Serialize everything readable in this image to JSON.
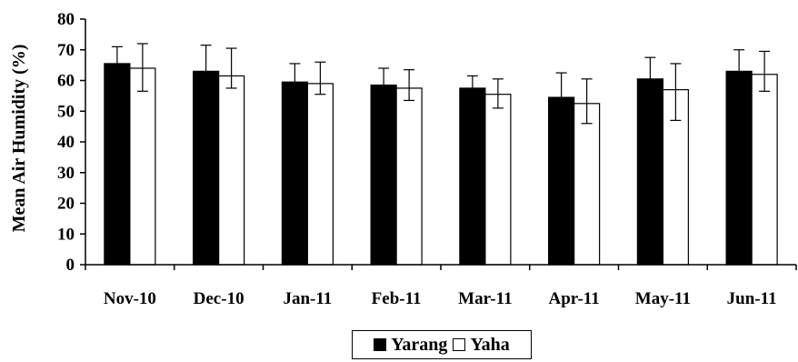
{
  "chart_data": {
    "type": "bar",
    "title": "",
    "xlabel": "",
    "ylabel": "Mean Air Humidity (%)",
    "ylim": [
      0,
      80
    ],
    "yticks": [
      "0",
      "10",
      "20",
      "30",
      "40",
      "50",
      "60",
      "70",
      "80"
    ],
    "categories": [
      "Nov-10",
      "Dec-10",
      "Jan-11",
      "Feb-11",
      "Mar-11",
      "Apr-11",
      "May-11",
      "Jun-11"
    ],
    "series": [
      {
        "name": "Yarang",
        "color": "#000000",
        "values": [
          65.5,
          63,
          59.5,
          58.5,
          57.5,
          54.5,
          60.5,
          63
        ],
        "error_low": [
          60,
          54,
          53.5,
          53.5,
          53,
          46.5,
          53.5,
          56
        ],
        "error_high": [
          71,
          71.5,
          65.5,
          64,
          61.5,
          62.5,
          67.5,
          70
        ]
      },
      {
        "name": "Yaha",
        "color": "#ffffff",
        "values": [
          64,
          61.5,
          59,
          57.5,
          55.5,
          52.5,
          57,
          62
        ],
        "error_low": [
          56.5,
          57.5,
          55.5,
          53.5,
          51,
          46,
          47,
          56.5
        ],
        "error_high": [
          72,
          70.5,
          66,
          63.5,
          60.5,
          60.5,
          65.5,
          69.5
        ]
      }
    ],
    "grid": false,
    "legend_position": "bottom-center"
  }
}
